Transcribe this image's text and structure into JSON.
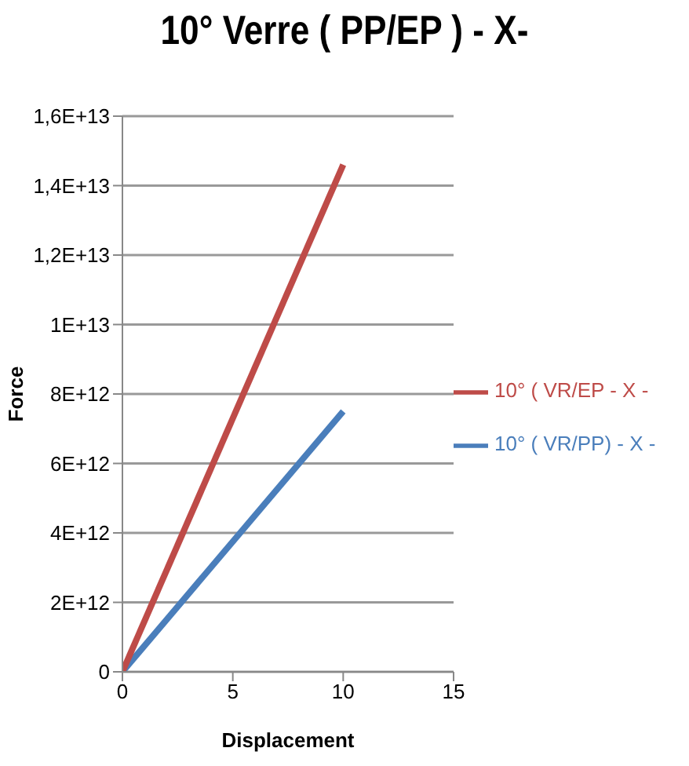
{
  "chart_data": {
    "type": "line",
    "title": "10° Verre ( PP/EP ) - X-",
    "xlabel": "Displacement",
    "ylabel": "Force",
    "x": [
      0,
      10
    ],
    "series": [
      {
        "name": "10° ( VR/PP) - X -",
        "color": "#4a7ebb",
        "values": [
          0,
          7500000000000.0
        ]
      },
      {
        "name": "10° ( VR/EP - X -",
        "color": "#be4b48",
        "values": [
          0,
          14600000000000.0
        ]
      }
    ],
    "xlim": [
      0,
      15
    ],
    "xticks": [
      0,
      5,
      10,
      15
    ],
    "ylim": [
      0,
      16000000000000.0
    ],
    "yticks": [
      0,
      {
        "value": 2000000000000.0,
        "label": "2E+12"
      },
      {
        "value": 4000000000000.0,
        "label": "4E+12"
      },
      {
        "value": 6000000000000.0,
        "label": "6E+12"
      },
      {
        "value": 8000000000000.0,
        "label": "8E+12"
      },
      {
        "value": 10000000000000.0,
        "label": "1E+13"
      },
      {
        "value": 12000000000000.0,
        "label": "1,2E+13"
      },
      {
        "value": 14000000000000.0,
        "label": "1,4E+13"
      },
      {
        "value": 16000000000000.0,
        "label": "1,6E+13"
      }
    ],
    "grid": "y",
    "legend": "right",
    "marker": "none",
    "line_style": "solid"
  }
}
